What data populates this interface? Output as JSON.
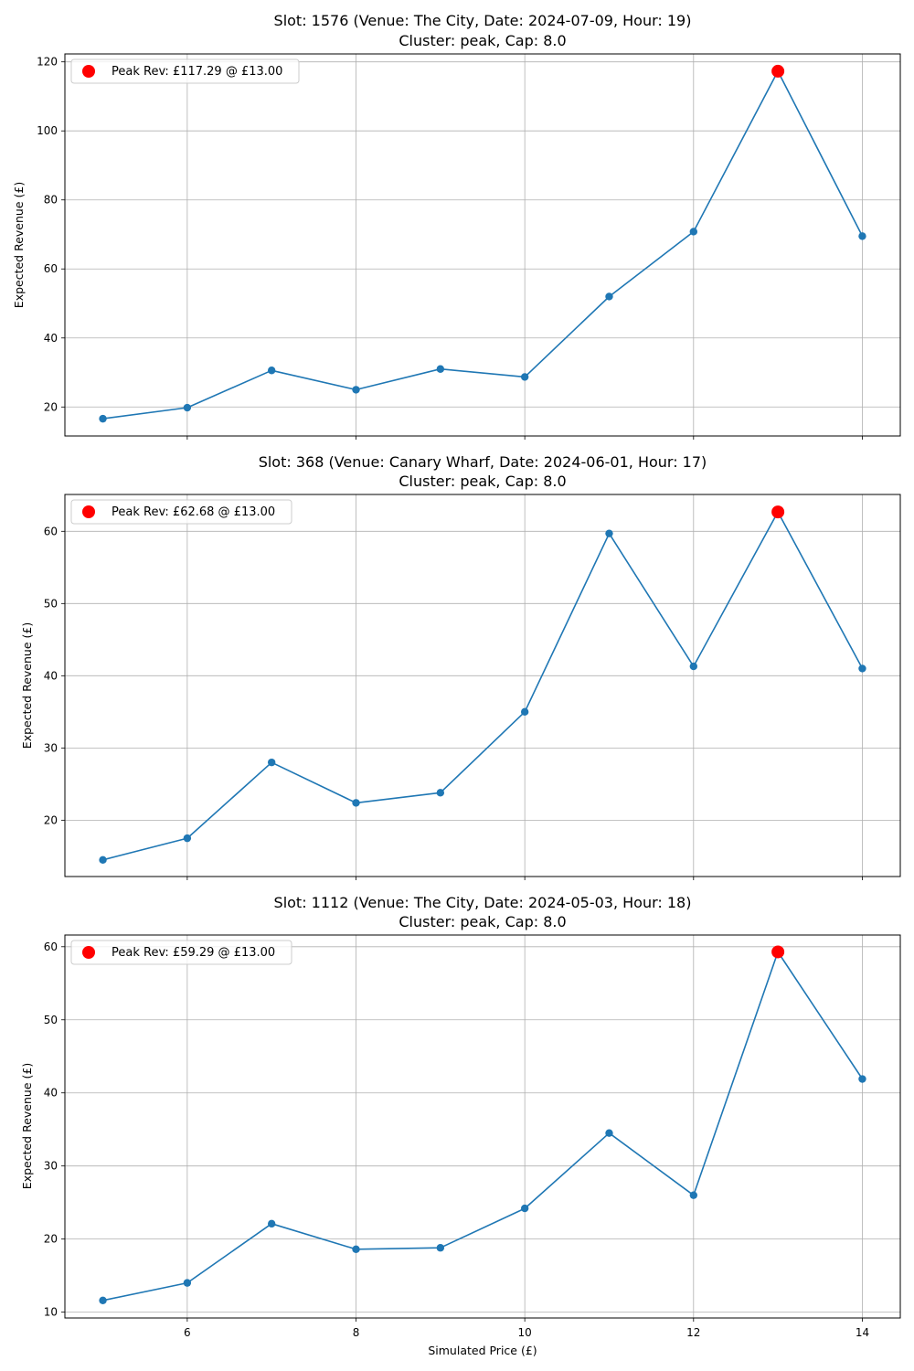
{
  "colors": {
    "line": "#1f77b4",
    "peak": "#ff0000",
    "grid": "#b0b0b0",
    "axes": "#000000"
  },
  "chart_data": [
    {
      "type": "line",
      "title_line1": "Slot: 1576 (Venue: The City, Date: 2024-07-09, Hour: 19)",
      "title_line2": "Cluster: peak, Cap: 8.0",
      "xlabel": "",
      "ylabel": "Expected Revenue (£)",
      "grid": true,
      "legend_position": "upper-left",
      "xlim": [
        4.55,
        14.45
      ],
      "ylim": [
        11.6,
        122.3
      ],
      "xticks": [
        6,
        8,
        10,
        12,
        14
      ],
      "xtick_labels_visible": false,
      "yticks": [
        20,
        40,
        60,
        80,
        100,
        120
      ],
      "x": [
        5,
        6,
        7,
        8,
        9,
        10,
        11,
        12,
        13,
        14
      ],
      "y": [
        16.6,
        19.8,
        30.6,
        25.0,
        31.0,
        28.7,
        52.0,
        70.8,
        117.29,
        69.5
      ],
      "peak": {
        "x": 13,
        "y": 117.29,
        "label": "Peak Rev: £117.29 @ £13.00"
      }
    },
    {
      "type": "line",
      "title_line1": "Slot: 368 (Venue: Canary Wharf, Date: 2024-06-01, Hour: 17)",
      "title_line2": "Cluster: peak, Cap: 8.0",
      "xlabel": "",
      "ylabel": "Expected Revenue (£)",
      "grid": true,
      "legend_position": "upper-left",
      "xlim": [
        4.55,
        14.45
      ],
      "ylim": [
        12.2,
        65.1
      ],
      "xticks": [
        6,
        8,
        10,
        12,
        14
      ],
      "xtick_labels_visible": false,
      "yticks": [
        20,
        30,
        40,
        50,
        60
      ],
      "x": [
        5,
        6,
        7,
        8,
        9,
        10,
        11,
        12,
        13,
        14
      ],
      "y": [
        14.5,
        17.5,
        28.0,
        22.4,
        23.8,
        35.0,
        59.7,
        41.3,
        62.68,
        41.0
      ],
      "peak": {
        "x": 13,
        "y": 62.68,
        "label": "Peak Rev: £62.68 @ £13.00"
      }
    },
    {
      "type": "line",
      "title_line1": "Slot: 1112 (Venue: The City, Date: 2024-05-03, Hour: 18)",
      "title_line2": "Cluster: peak, Cap: 8.0",
      "xlabel": "Simulated Price (£)",
      "ylabel": "Expected Revenue (£)",
      "grid": true,
      "legend_position": "upper-left",
      "xlim": [
        4.55,
        14.45
      ],
      "ylim": [
        9.2,
        61.6
      ],
      "xticks": [
        6,
        8,
        10,
        12,
        14
      ],
      "xtick_labels_visible": true,
      "yticks": [
        10,
        20,
        30,
        40,
        50,
        60
      ],
      "x": [
        5,
        6,
        7,
        8,
        9,
        10,
        11,
        12,
        13,
        14
      ],
      "y": [
        11.6,
        14.0,
        22.1,
        18.6,
        18.8,
        24.2,
        34.5,
        26.0,
        59.29,
        41.9
      ],
      "peak": {
        "x": 13,
        "y": 59.29,
        "label": "Peak Rev: £59.29 @ £13.00"
      }
    }
  ]
}
